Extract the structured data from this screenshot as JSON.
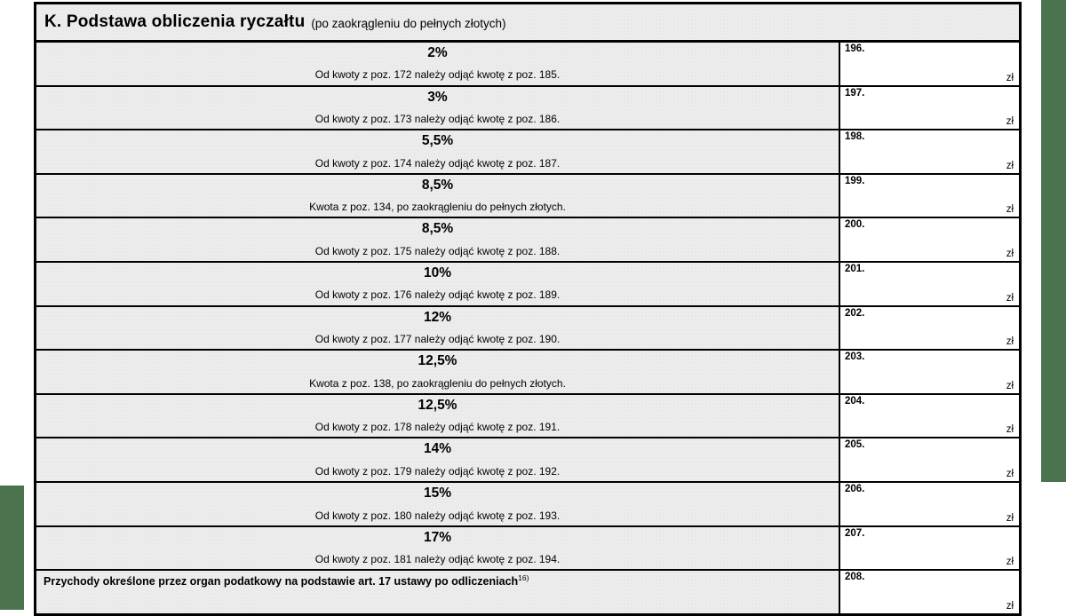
{
  "section": {
    "title": "K. Podstawa obliczenia ryczałtu",
    "subtitle": "(po zaokrągleniu do pełnych złotych)"
  },
  "table": {
    "rows": [
      {
        "rate": "2%",
        "description": "Od kwoty z poz. 172 należy odjąć kwotę z poz. 185.",
        "field_number": "196.",
        "currency": "zł"
      },
      {
        "rate": "3%",
        "description": "Od kwoty z poz. 173 należy odjąć kwotę z poz. 186.",
        "field_number": "197.",
        "currency": "zł"
      },
      {
        "rate": "5,5%",
        "description": "Od kwoty z poz. 174 należy odjąć kwotę z poz. 187.",
        "field_number": "198.",
        "currency": "zł"
      },
      {
        "rate": "8,5%",
        "description": "Kwota z poz. 134, po zaokrągleniu do pełnych złotych.",
        "field_number": "199.",
        "currency": "zł"
      },
      {
        "rate": "8,5%",
        "description": "Od kwoty z poz. 175 należy odjąć kwotę z poz. 188.",
        "field_number": "200.",
        "currency": "zł"
      },
      {
        "rate": "10%",
        "description": "Od kwoty z poz. 176 należy odjąć kwotę z poz. 189.",
        "field_number": "201.",
        "currency": "zł"
      },
      {
        "rate": "12%",
        "description": "Od kwoty z poz. 177 należy odjąć kwotę z poz. 190.",
        "field_number": "202.",
        "currency": "zł"
      },
      {
        "rate": "12,5%",
        "description": "Kwota z poz. 138, po zaokrągleniu do pełnych złotych.",
        "field_number": "203.",
        "currency": "zł"
      },
      {
        "rate": "12,5%",
        "description": "Od kwoty z poz. 178 należy odjąć kwotę z poz. 191.",
        "field_number": "204.",
        "currency": "zł"
      },
      {
        "rate": "14%",
        "description": "Od kwoty z poz. 179 należy odjąć kwotę z poz. 192.",
        "field_number": "205.",
        "currency": "zł"
      },
      {
        "rate": "15%",
        "description": "Od kwoty z poz. 180 należy odjąć kwotę z poz. 193.",
        "field_number": "206.",
        "currency": "zł"
      },
      {
        "rate": "17%",
        "description": "Od kwoty z poz. 181 należy odjąć kwotę z poz. 194.",
        "field_number": "207.",
        "currency": "zł"
      }
    ],
    "final_row": {
      "label": "Przychody określone przez organ podatkowy na podstawie art. 17 ustawy po odliczeniach",
      "footnote_ref": "16)",
      "field_number": "208.",
      "currency": "zł"
    }
  },
  "colors": {
    "edge_green": "#4b734e",
    "cell_gray": "#ececec"
  }
}
